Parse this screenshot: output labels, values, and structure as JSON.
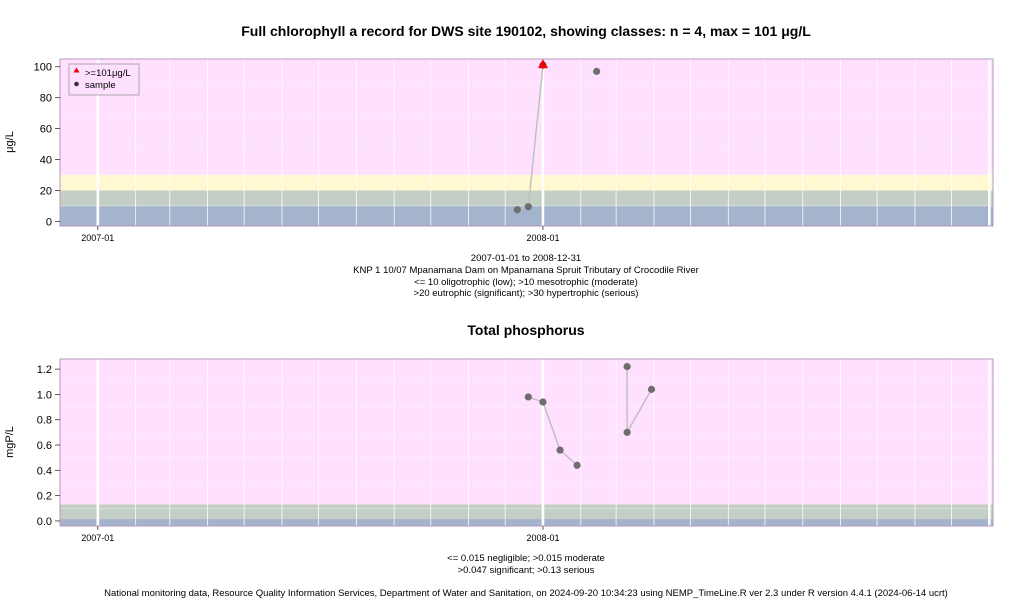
{
  "colors": {
    "plot_bg": "#ffe0ff",
    "chl_bands": [
      "#a4b4cc",
      "#c3cec4",
      "#fff8d0",
      "#ffe0ff"
    ],
    "tp_bands": [
      "#a4b4cc",
      "#c3cec4",
      "#ffe0ff"
    ],
    "point": "#6e6e6e",
    "line": "#bebebe",
    "high_marker": "#ee0000",
    "grid": "#ffffff"
  },
  "footer": "National monitoring data, Resource Quality Information Services, Department of Water and Sanitation, on 2024-09-20 10:34:23 using NEMP_TimeLine.R ver 2.3 under R version 4.4.1 (2024-06-14 ucrt)",
  "chart_data": [
    {
      "type": "scatter",
      "title": "Full chlorophyll a record for DWS site 190102, showing classes: n = 4, max = 101 μg/L",
      "ylabel": "μg/L",
      "xlabel": "",
      "xlim": [
        "2006-12-01",
        "2009-01-04"
      ],
      "ylim": [
        -3,
        105
      ],
      "y_ticks": [
        "0",
        "20",
        "40",
        "60",
        "80",
        "100"
      ],
      "x_ticks": [
        {
          "date": "2007-01-01",
          "label": "2007-01"
        },
        {
          "date": "2008-01-01",
          "label": "2008-01"
        }
      ],
      "class_bands": [
        {
          "from": -3,
          "to": 10
        },
        {
          "from": 10,
          "to": 20
        },
        {
          "from": 20,
          "to": 30
        },
        {
          "from": 30,
          "to": 105
        }
      ],
      "series": [
        {
          "name": "sample",
          "x": [
            "2007-12-11",
            "2007-12-20",
            "2008-01-01",
            "2008-02-14"
          ],
          "y": [
            7.5,
            9.5,
            101,
            97
          ],
          "connect": [
            [
              0,
              1
            ],
            [
              1,
              2
            ]
          ]
        }
      ],
      "high_values": [
        {
          "x": "2008-01-01",
          "y": 101
        }
      ],
      "legend": {
        "position": "top-left",
        "entries": [
          ">=101μg/L",
          "sample"
        ]
      },
      "caption": [
        "2007-01-01 to 2008-12-31",
        "KNP 1 10/07 Mpanamana Dam on Mpanamana Spruit Tributary of Crocodile River",
        "<= 10 oligotrophic (low); >10 mesotrophic (moderate)",
        ">20 eutrophic (significant); >30 hypertrophic (serious)"
      ]
    },
    {
      "type": "scatter",
      "title": "Total phosphorus",
      "ylabel": "mgP/L",
      "xlabel": "",
      "xlim": [
        "2006-12-01",
        "2009-01-04"
      ],
      "ylim": [
        -0.04,
        1.28
      ],
      "y_ticks": [
        "0.0",
        "0.2",
        "0.4",
        "0.6",
        "0.8",
        "1.0",
        "1.2"
      ],
      "x_ticks": [
        {
          "date": "2007-01-01",
          "label": "2007-01"
        },
        {
          "date": "2008-01-01",
          "label": "2008-01"
        }
      ],
      "class_bands": [
        {
          "from": -0.04,
          "to": 0.015
        },
        {
          "from": 0.015,
          "to": 0.13
        },
        {
          "from": 0.13,
          "to": 1.28
        }
      ],
      "series": [
        {
          "name": "sample",
          "x": [
            "2007-12-20",
            "2008-01-01",
            "2008-01-15",
            "2008-01-29",
            "2008-03-10",
            "2008-03-10",
            "2008-03-30"
          ],
          "y": [
            0.98,
            0.94,
            0.56,
            0.44,
            1.22,
            0.7,
            1.04
          ],
          "connect": [
            [
              0,
              1
            ],
            [
              1,
              2
            ],
            [
              2,
              3
            ],
            [
              4,
              5
            ],
            [
              5,
              6
            ]
          ]
        }
      ],
      "caption": [
        "<= 0.015 negligible; >0.015 moderate",
        ">0.047 significant; >0.13 serious"
      ]
    }
  ]
}
